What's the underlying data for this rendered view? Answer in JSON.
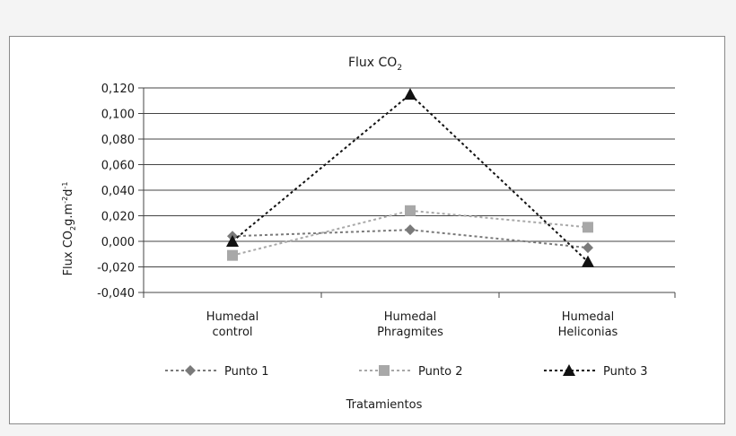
{
  "chart_data": {
    "type": "line",
    "title": "Flux CO",
    "title_subscript": "2",
    "ylabel": {
      "part1": "Flux CO",
      "sub": "2",
      "part2": "g.m",
      "sup1": "-2",
      "part3": "d",
      "sup2": "-1"
    },
    "xlabel": "Tratamientos",
    "ylim": [
      -0.04,
      0.12
    ],
    "yticks": [
      "-0,040",
      "-0,020",
      "0,000",
      "0,020",
      "0,040",
      "0,060",
      "0,080",
      "0,100",
      "0,120"
    ],
    "ytick_values": [
      -0.04,
      -0.02,
      0,
      0.02,
      0.04,
      0.06,
      0.08,
      0.1,
      0.12
    ],
    "categories": [
      [
        "Humedal",
        "control"
      ],
      [
        "Humedal",
        "Phragmites"
      ],
      [
        "Humedal",
        "Heliconias"
      ]
    ],
    "grid": true,
    "legend_position": "bottom",
    "series": [
      {
        "name": "Punto 1",
        "marker": "diamond",
        "color": "#7a7a7a",
        "values": [
          0.004,
          0.009,
          -0.005
        ]
      },
      {
        "name": "Punto 2",
        "marker": "square",
        "color": "#a8a8a8",
        "values": [
          -0.011,
          0.024,
          0.011
        ]
      },
      {
        "name": "Punto 3",
        "marker": "triangle",
        "color": "#111111",
        "values": [
          0.0,
          0.115,
          -0.016
        ]
      }
    ]
  }
}
